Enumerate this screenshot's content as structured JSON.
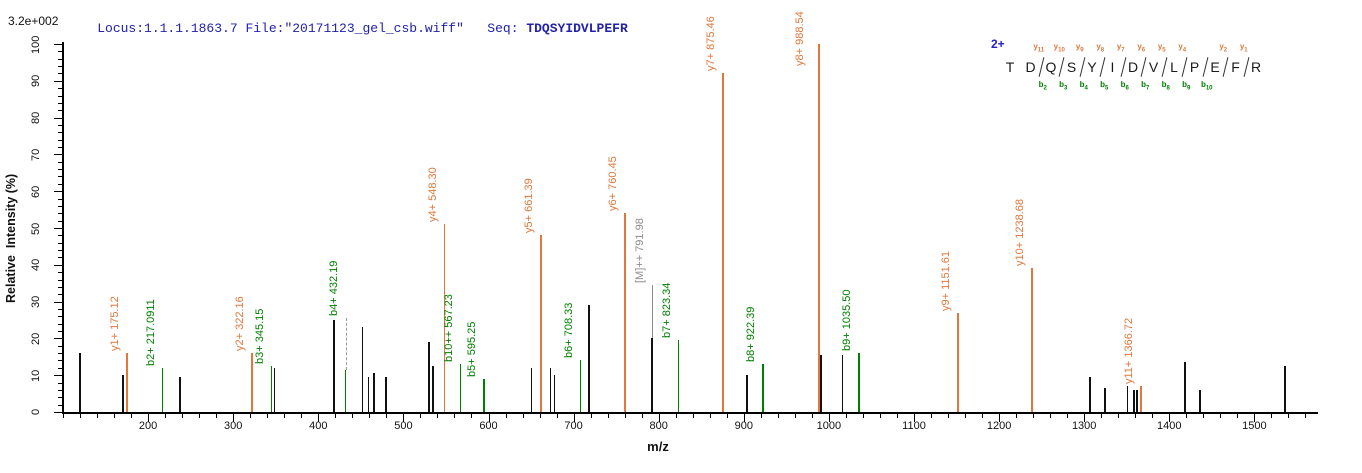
{
  "header": {
    "locus_file": "Locus:1.1.1.1863.7 File:\"20171123_gel_csb.wiff\"",
    "seq_label": "Seq:",
    "seq_value": "TDQSYIDVLPEFR"
  },
  "colors": {
    "y_ion": "#E0783C",
    "b_ion": "#008000",
    "precursor": "#8C8C8C",
    "peak_black": "#111111",
    "header_text": "#2121AE",
    "charge_label": "#2020CC",
    "axis": "#000000"
  },
  "chart_data": {
    "type": "bar",
    "subtype": "ms2-spectrum",
    "title": "Locus:1.1.1.1863.7 File:\"20171123_gel_csb.wiff\"  Seq: TDQSYIDVLPEFR",
    "xlabel": "m/z",
    "ylabel": "Relative  Intensity (%)",
    "y_max_label": "3.2e+002",
    "xlim": [
      100,
      1575
    ],
    "ylim": [
      0,
      100
    ],
    "x_major_tick_step": 100,
    "x_minor_tick_step": 20,
    "x_major_tick_labels": [
      "200",
      "300",
      "400",
      "500",
      "600",
      "700",
      "800",
      "900",
      "1000",
      "1100",
      "1200",
      "1300",
      "1400",
      "1500"
    ],
    "y_major_tick_step": 10,
    "y_minor_tick_step": 2,
    "y_major_tick_labels": [
      "0",
      "10",
      "20",
      "30",
      "40",
      "50",
      "60",
      "70",
      "80",
      "90",
      "100"
    ],
    "grid": false,
    "legend": false,
    "annotated_peaks": [
      {
        "ion": "y1+",
        "mz": 175.12,
        "label": "y1+ 175.12",
        "pct": 16,
        "type": "y"
      },
      {
        "ion": "b2+",
        "mz": 217.0911,
        "label": "b2+ 217.0911",
        "pct": 12,
        "type": "b"
      },
      {
        "ion": "y2+",
        "mz": 322.16,
        "label": "y2+ 322.16",
        "pct": 16,
        "type": "y"
      },
      {
        "ion": "b3+",
        "mz": 345.15,
        "label": "b3+ 345.15",
        "pct": 12.5,
        "type": "b"
      },
      {
        "ion": "b4+",
        "mz": 432.19,
        "label": "b4+ 432.19",
        "pct": 11.5,
        "label_pct": 25.5,
        "connector": "dashed",
        "type": "b"
      },
      {
        "ion": "y4+",
        "mz": 548.3,
        "label": "y4+ 548.30",
        "pct": 51,
        "type": "y"
      },
      {
        "ion": "b10++",
        "mz": 567.23,
        "label": "b10++ 567.23",
        "pct": 13,
        "type": "b"
      },
      {
        "ion": "b5+",
        "mz": 595.25,
        "label": "b5+ 595.25",
        "pct": 9,
        "type": "b"
      },
      {
        "ion": "y5+",
        "mz": 661.39,
        "label": "y5+ 661.39",
        "pct": 48,
        "type": "y"
      },
      {
        "ion": "b6+",
        "mz": 708.33,
        "label": "b6+ 708.33",
        "pct": 14,
        "type": "b"
      },
      {
        "ion": "y6+",
        "mz": 760.45,
        "label": "y6+ 760.45",
        "pct": 54,
        "type": "y"
      },
      {
        "ion": "[M]++",
        "mz": 791.98,
        "label": "[M]++ 791.98",
        "pct": 20,
        "label_pct": 34.5,
        "connector": "solid",
        "type": "precursor"
      },
      {
        "ion": "b7+",
        "mz": 823.34,
        "label": "b7+ 823.34",
        "pct": 19.5,
        "type": "b"
      },
      {
        "ion": "y7+",
        "mz": 875.46,
        "label": "y7+ 875.46",
        "pct": 92,
        "type": "y"
      },
      {
        "ion": "b8+",
        "mz": 922.39,
        "label": "b8+ 922.39",
        "pct": 13,
        "type": "b"
      },
      {
        "ion": "y8+",
        "mz": 988.54,
        "label": "y8+ 988.54",
        "pct": 100,
        "label_pct": 93.5,
        "label_dx": -7,
        "type": "y"
      },
      {
        "ion": "b9+",
        "mz": 1035.5,
        "label": "b9+ 1035.50",
        "pct": 16,
        "type": "b"
      },
      {
        "ion": "y9+",
        "mz": 1151.61,
        "label": "y9+ 1151.61",
        "pct": 27,
        "type": "y"
      },
      {
        "ion": "y10+",
        "mz": 1238.68,
        "label": "y10+ 1238.68",
        "pct": 39,
        "type": "y"
      },
      {
        "ion": "y11+",
        "mz": 1366.72,
        "label": "y11+ 1366.72",
        "pct": 7,
        "type": "y"
      }
    ],
    "unannotated_peaks": [
      {
        "mz": 120,
        "pct": 16
      },
      {
        "mz": 171,
        "pct": 10
      },
      {
        "mz": 238,
        "pct": 9.5
      },
      {
        "mz": 349,
        "pct": 12
      },
      {
        "mz": 419,
        "pct": 25
      },
      {
        "mz": 452,
        "pct": 23
      },
      {
        "mz": 459,
        "pct": 9.5
      },
      {
        "mz": 466,
        "pct": 10.5
      },
      {
        "mz": 480,
        "pct": 9.5
      },
      {
        "mz": 530,
        "pct": 19
      },
      {
        "mz": 535,
        "pct": 12.5
      },
      {
        "mz": 651,
        "pct": 12
      },
      {
        "mz": 673,
        "pct": 12
      },
      {
        "mz": 678,
        "pct": 10
      },
      {
        "mz": 718,
        "pct": 29
      },
      {
        "mz": 904,
        "pct": 10
      },
      {
        "mz": 991,
        "pct": 15.5
      },
      {
        "mz": 1016,
        "pct": 15.5
      },
      {
        "mz": 1239,
        "pct": 16
      },
      {
        "mz": 1307,
        "pct": 9.5
      },
      {
        "mz": 1325,
        "pct": 6.5
      },
      {
        "mz": 1351,
        "pct": 7
      },
      {
        "mz": 1359,
        "pct": 6
      },
      {
        "mz": 1362,
        "pct": 6
      },
      {
        "mz": 1419,
        "pct": 13.5
      },
      {
        "mz": 1436,
        "pct": 6
      },
      {
        "mz": 1536,
        "pct": 12.5
      }
    ]
  },
  "peptide_diagram": {
    "charge_label": "2+",
    "sequence": [
      "T",
      "D",
      "Q",
      "S",
      "Y",
      "I",
      "D",
      "V",
      "L",
      "P",
      "E",
      "F",
      "R"
    ],
    "cleavages": [
      {
        "after_index": 1,
        "y": "y11",
        "b": "b2"
      },
      {
        "after_index": 2,
        "y": "y10",
        "b": "b3"
      },
      {
        "after_index": 3,
        "y": "y9",
        "b": "b4"
      },
      {
        "after_index": 4,
        "y": "y8",
        "b": "b5"
      },
      {
        "after_index": 5,
        "y": "y7",
        "b": "b6"
      },
      {
        "after_index": 6,
        "y": "y6",
        "b": "b7"
      },
      {
        "after_index": 7,
        "y": "y5",
        "b": "b8"
      },
      {
        "after_index": 8,
        "y": "y4",
        "b": "b9"
      },
      {
        "after_index": 9,
        "y": null,
        "b": "b10"
      },
      {
        "after_index": 10,
        "y": "y2",
        "b": null
      },
      {
        "after_index": 11,
        "y": "y1",
        "b": null
      }
    ]
  }
}
